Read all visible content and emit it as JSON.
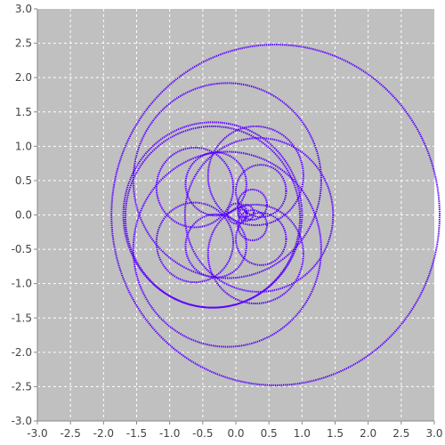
{
  "chart_data": {
    "type": "scatter",
    "title": "",
    "xlabel": "",
    "ylabel": "",
    "xlim": [
      -3.0,
      3.0
    ],
    "ylim": [
      -3.0,
      3.0
    ],
    "grid": true,
    "legend": "none",
    "x_ticks": [
      "-3.0",
      "-2.5",
      "-2.0",
      "-1.5",
      "-1.0",
      "-0.5",
      "0.0",
      "0.5",
      "1.0",
      "1.5",
      "2.0",
      "2.5",
      "3.0"
    ],
    "y_ticks": [
      "3.0",
      "2.5",
      "2.0",
      "1.5",
      "1.0",
      "0.5",
      "0.0",
      "-0.5",
      "-1.0",
      "-1.5",
      "-2.0",
      "-2.5",
      "-3.0"
    ],
    "colors": {
      "plot_background": "#c0c0c0",
      "grid": "#ffffff",
      "series": "#5a00ff",
      "axis": "#888888"
    },
    "series": [
      {
        "shape": "circles",
        "circles": [
          {
            "cx": 0.6,
            "cy": 0.0,
            "r": 2.48
          },
          {
            "cx": -0.13,
            "cy": 0.5,
            "r": 1.42
          },
          {
            "cx": -0.13,
            "cy": -0.5,
            "r": 1.42
          },
          {
            "cx": -0.35,
            "cy": 0.0,
            "r": 1.35
          },
          {
            "cx": -0.35,
            "cy": -0.03,
            "r": 1.32
          },
          {
            "cx": 0.35,
            "cy": 0.0,
            "r": 1.12
          },
          {
            "cx": -0.62,
            "cy": 0.4,
            "r": 0.58
          },
          {
            "cx": -0.62,
            "cy": -0.4,
            "r": 0.58
          },
          {
            "cx": 0.3,
            "cy": 0.57,
            "r": 0.72
          },
          {
            "cx": 0.3,
            "cy": -0.57,
            "r": 0.72
          },
          {
            "cx": -0.3,
            "cy": 0.45,
            "r": 0.46
          },
          {
            "cx": -0.3,
            "cy": -0.45,
            "r": 0.46
          },
          {
            "cx": 0.38,
            "cy": 0.35,
            "r": 0.38
          },
          {
            "cx": 0.38,
            "cy": -0.35,
            "r": 0.38
          },
          {
            "cx": 0.25,
            "cy": 0.15,
            "r": 0.22
          },
          {
            "cx": 0.25,
            "cy": -0.15,
            "r": 0.22
          },
          {
            "cx": 0.02,
            "cy": 0.02,
            "r": 0.15
          },
          {
            "cx": 0.15,
            "cy": 0.03,
            "r": 0.12
          },
          {
            "cx": 0.1,
            "cy": 0.02,
            "r": 0.06
          }
        ]
      }
    ]
  }
}
